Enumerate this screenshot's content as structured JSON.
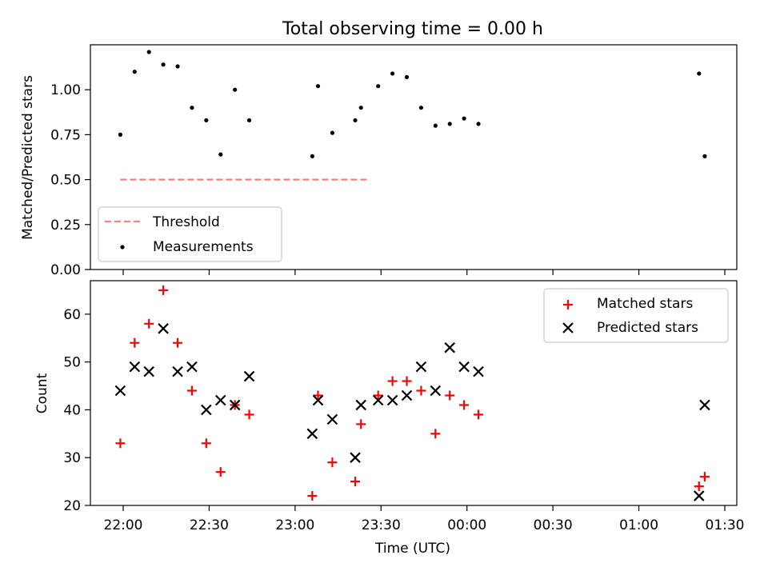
{
  "chart_data": [
    {
      "type": "scatter",
      "title": "Total observing time = 0.00 h",
      "xlabel": "",
      "ylabel": "Matched/Predicted stars",
      "ylim": [
        0,
        1.25
      ],
      "yticks": [
        "0.00",
        "0.25",
        "0.50",
        "0.75",
        "1.00"
      ],
      "legend_position": "lower-left",
      "series": [
        {
          "name": "Threshold",
          "kind": "line",
          "style": "dashed",
          "color": "#ff7f7f",
          "x": [
            "21:59",
            "23:25"
          ],
          "y": [
            0.5,
            0.5
          ]
        },
        {
          "name": "Measurements",
          "kind": "scatter",
          "marker": "dot",
          "color": "#000000",
          "x": [
            "21:59",
            "22:04",
            "22:09",
            "22:14",
            "22:19",
            "22:24",
            "22:29",
            "22:34",
            "22:39",
            "22:44",
            "23:06",
            "23:08",
            "23:13",
            "23:21",
            "23:23",
            "23:29",
            "23:34",
            "23:39",
            "23:44",
            "23:49",
            "23:54",
            "23:59",
            "00:04",
            "01:21",
            "01:23"
          ],
          "y": [
            0.75,
            1.1,
            1.21,
            1.14,
            1.13,
            0.9,
            0.83,
            0.64,
            1.0,
            0.83,
            0.63,
            1.02,
            0.76,
            0.83,
            0.9,
            1.02,
            1.09,
            1.07,
            0.9,
            0.8,
            0.81,
            0.84,
            0.81,
            1.09,
            0.63
          ]
        }
      ]
    },
    {
      "type": "scatter",
      "title": "",
      "xlabel": "Time (UTC)",
      "ylabel": "Count",
      "ylim": [
        20,
        67
      ],
      "yticks": [
        "20",
        "30",
        "40",
        "50",
        "60"
      ],
      "xticks": [
        "22:00",
        "22:30",
        "23:00",
        "23:30",
        "00:00",
        "00:30",
        "01:00",
        "01:30"
      ],
      "legend_position": "upper-right",
      "series": [
        {
          "name": "Matched stars",
          "marker": "+",
          "color": "#ff0000",
          "x": [
            "21:59",
            "22:04",
            "22:09",
            "22:14",
            "22:19",
            "22:24",
            "22:29",
            "22:34",
            "22:39",
            "22:44",
            "23:06",
            "23:08",
            "23:13",
            "23:21",
            "23:23",
            "23:29",
            "23:34",
            "23:39",
            "23:44",
            "23:49",
            "23:54",
            "23:59",
            "00:04",
            "01:21",
            "01:23"
          ],
          "y": [
            33,
            54,
            58,
            65,
            54,
            44,
            33,
            27,
            41,
            39,
            22,
            43,
            29,
            25,
            37,
            43,
            46,
            46,
            44,
            35,
            43,
            41,
            39,
            24,
            26
          ]
        },
        {
          "name": "Predicted stars",
          "marker": "x",
          "color": "#000000",
          "x": [
            "21:59",
            "22:04",
            "22:09",
            "22:14",
            "22:19",
            "22:24",
            "22:29",
            "22:34",
            "22:39",
            "22:44",
            "23:06",
            "23:08",
            "23:13",
            "23:21",
            "23:23",
            "23:29",
            "23:34",
            "23:39",
            "23:44",
            "23:49",
            "23:54",
            "23:59",
            "00:04",
            "01:21",
            "01:23"
          ],
          "y": [
            44,
            49,
            48,
            57,
            48,
            49,
            40,
            42,
            41,
            47,
            35,
            42,
            38,
            30,
            41,
            42,
            42,
            43,
            49,
            44,
            53,
            49,
            48,
            22,
            41
          ]
        }
      ]
    }
  ]
}
